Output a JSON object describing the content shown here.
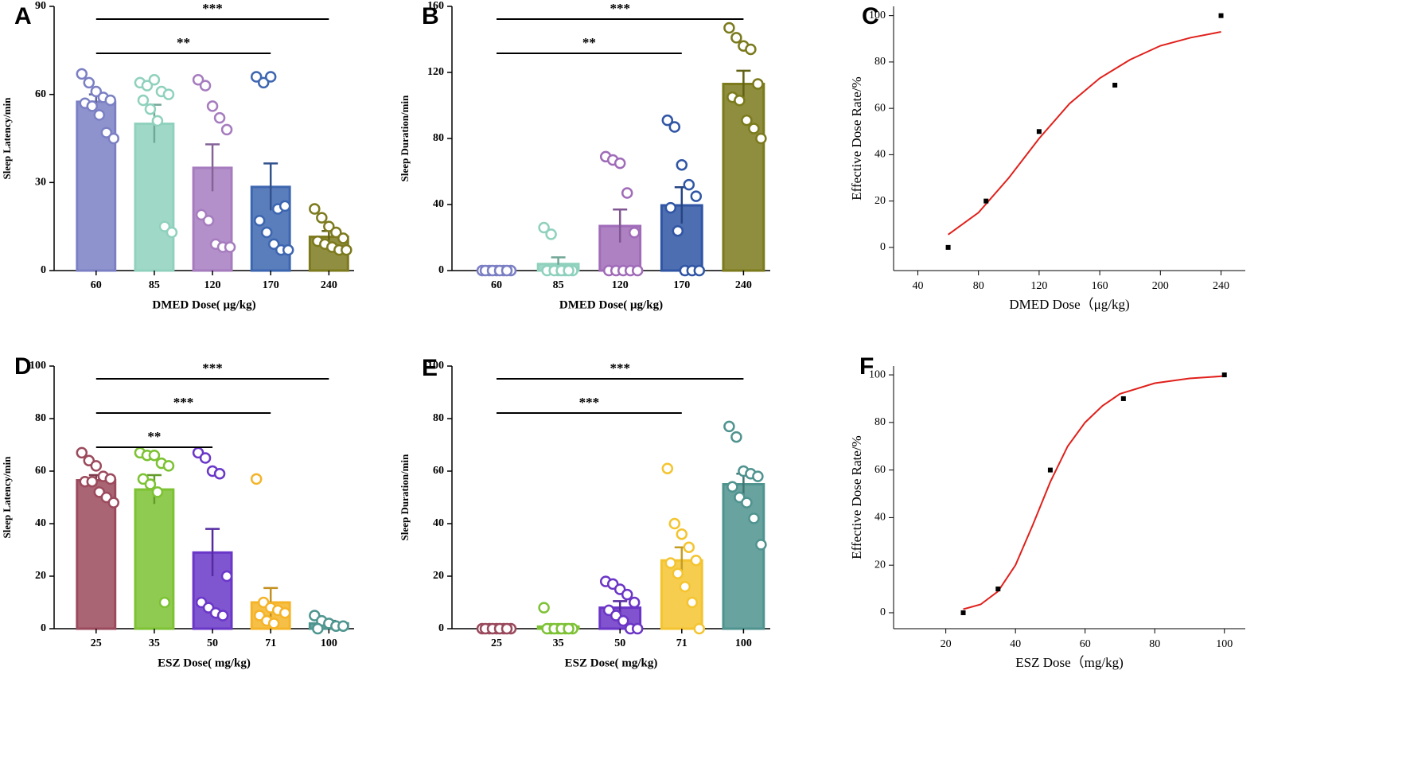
{
  "chart_data": [
    {
      "panel": "A",
      "type": "bar",
      "ylabel": "Sleep Latency/min",
      "xlabel": "DMED Dose( μg/kg)",
      "categories": [
        "60",
        "85",
        "120",
        "170",
        "240"
      ],
      "values": [
        57.5,
        50,
        35,
        28.5,
        11.5
      ],
      "errors": [
        2.5,
        6.5,
        8,
        8,
        2
      ],
      "colors": [
        "#7b80c4",
        "#8fd1bd",
        "#a67cbf",
        "#3d66b0",
        "#7d7a1e"
      ],
      "points": [
        [
          67,
          64,
          61,
          59,
          58,
          57,
          56,
          53,
          47,
          45
        ],
        [
          64,
          63,
          65,
          61,
          60,
          58,
          55,
          51,
          15,
          13
        ],
        [
          65,
          63,
          56,
          52,
          48,
          19,
          17,
          9,
          8,
          8
        ],
        [
          66,
          64,
          66,
          21,
          22,
          17,
          13,
          9,
          7,
          7
        ],
        [
          21,
          18,
          15,
          13,
          11,
          10,
          9,
          8,
          7,
          7
        ]
      ],
      "ylim": [
        0,
        90
      ],
      "yticks": [
        0,
        30,
        60,
        90
      ],
      "annotations": [
        {
          "label": "**",
          "between": [
            "60",
            "170"
          ]
        },
        {
          "label": "***",
          "between": [
            "60",
            "240"
          ]
        }
      ]
    },
    {
      "panel": "B",
      "type": "bar",
      "ylabel": "Sleep Duration/min",
      "xlabel": "DMED Dose( μg/kg)",
      "categories": [
        "60",
        "85",
        "120",
        "170",
        "240"
      ],
      "values": [
        0,
        4,
        27,
        39.5,
        113
      ],
      "errors": [
        0,
        4,
        10,
        11,
        8
      ],
      "colors": [
        "#7b7fc4",
        "#8fd1bd",
        "#a06bb8",
        "#2f55a4",
        "#7b7a1c"
      ],
      "points": [
        [
          0,
          0,
          0,
          0,
          0,
          0,
          0,
          0,
          0
        ],
        [
          26,
          22,
          0,
          0,
          0,
          0,
          0,
          0,
          0
        ],
        [
          69,
          67,
          65,
          47,
          23,
          0,
          0,
          0,
          0,
          0
        ],
        [
          91,
          87,
          64,
          52,
          45,
          38,
          24,
          0,
          0,
          0
        ],
        [
          147,
          141,
          136,
          134,
          113,
          105,
          103,
          91,
          86,
          80
        ]
      ],
      "ylim": [
        0,
        160
      ],
      "yticks": [
        0,
        40,
        80,
        120,
        160
      ],
      "annotations": [
        {
          "label": "**",
          "between": [
            "60",
            "170"
          ]
        },
        {
          "label": "***",
          "between": [
            "60",
            "240"
          ]
        }
      ]
    },
    {
      "panel": "C",
      "type": "scatter",
      "ylabel": "Effective Dose Rate/%",
      "xlabel": "DMED Dose（μg/kg)",
      "x": [
        60,
        85,
        120,
        170,
        240
      ],
      "values": [
        0,
        20,
        50,
        70,
        100
      ],
      "color": "#000000",
      "fit": {
        "x": [
          60,
          80,
          100,
          120,
          140,
          160,
          180,
          200,
          220,
          240
        ],
        "y": [
          5.5,
          15,
          30,
          47,
          62,
          73,
          81,
          87,
          90.5,
          93
        ],
        "color": "#e0201b"
      },
      "xlim": [
        24,
        256
      ],
      "xticks": [
        40,
        80,
        120,
        160,
        200,
        240
      ],
      "ylim": [
        -10,
        104
      ],
      "yticks": [
        0,
        20,
        40,
        60,
        80,
        100
      ]
    },
    {
      "panel": "D",
      "type": "bar",
      "ylabel": "Sleep Latency/min",
      "xlabel": "ESZ Dose( mg/kg)",
      "categories": [
        "25",
        "35",
        "50",
        "71",
        "100"
      ],
      "values": [
        56.5,
        53,
        29,
        10,
        2
      ],
      "errors": [
        2,
        5.5,
        9,
        5.5,
        1
      ],
      "colors": [
        "#9b4a5c",
        "#7cc233",
        "#6a37c8",
        "#f5b428",
        "#4f9590"
      ],
      "points": [
        [
          67,
          64,
          62,
          58,
          57,
          56,
          56,
          52,
          50,
          48
        ],
        [
          67,
          66,
          66,
          63,
          62,
          57,
          55,
          52,
          10
        ],
        [
          67,
          65,
          60,
          59,
          20,
          10,
          8,
          6,
          5
        ],
        [
          57,
          10,
          8,
          7,
          6,
          5,
          3,
          2
        ],
        [
          5,
          3,
          2,
          1,
          1,
          0
        ]
      ],
      "ylim": [
        0,
        100
      ],
      "yticks": [
        0,
        20,
        40,
        60,
        80,
        100
      ],
      "annotations": [
        {
          "label": "**",
          "between": [
            "25",
            "50"
          ]
        },
        {
          "label": "***",
          "between": [
            "25",
            "71"
          ]
        },
        {
          "label": "***",
          "between": [
            "25",
            "100"
          ]
        }
      ]
    },
    {
      "panel": "E",
      "type": "bar",
      "ylabel": "Sleep Duration/min",
      "xlabel": "ESZ Dose( mg/kg)",
      "categories": [
        "25",
        "35",
        "50",
        "71",
        "100"
      ],
      "values": [
        0,
        0.8,
        8,
        26,
        55
      ],
      "errors": [
        0,
        0.8,
        2.5,
        5,
        4
      ],
      "colors": [
        "#9a4a5d",
        "#7ec236",
        "#6b35c6",
        "#f4c430",
        "#4f938f"
      ],
      "points": [
        [
          0,
          0,
          0,
          0,
          0,
          0,
          0,
          0,
          0
        ],
        [
          8,
          0,
          0,
          0,
          0,
          0,
          0,
          0,
          0
        ],
        [
          18,
          17,
          15,
          13,
          10,
          7,
          5,
          3,
          0,
          0
        ],
        [
          61,
          40,
          36,
          31,
          26,
          25,
          21,
          16,
          10,
          0
        ],
        [
          77,
          73,
          60,
          59,
          58,
          54,
          50,
          48,
          42,
          32
        ]
      ],
      "ylim": [
        0,
        100
      ],
      "yticks": [
        0,
        20,
        40,
        60,
        80,
        100
      ],
      "annotations": [
        {
          "label": "***",
          "between": [
            "25",
            "71"
          ]
        },
        {
          "label": "***",
          "between": [
            "25",
            "100"
          ]
        }
      ]
    },
    {
      "panel": "F",
      "type": "scatter",
      "ylabel": "Effective Dose Rate/%",
      "xlabel": "ESZ Dose（mg/kg)",
      "x": [
        25,
        35,
        50,
        71,
        100
      ],
      "values": [
        0,
        10,
        60,
        90,
        100
      ],
      "color": "#000000",
      "fit": {
        "x": [
          25,
          30,
          35,
          40,
          45,
          50,
          55,
          60,
          65,
          70,
          80,
          90,
          100
        ],
        "y": [
          1.5,
          3.5,
          9,
          20,
          37,
          55,
          70,
          80,
          87,
          92,
          96.5,
          98.5,
          99.5
        ],
        "color": "#e0201b"
      },
      "xlim": [
        5,
        106
      ],
      "xticks": [
        20,
        40,
        60,
        80,
        100
      ],
      "ylim": [
        -6.7,
        103.7
      ],
      "yticks": [
        0,
        20,
        40,
        60,
        80,
        100
      ]
    }
  ]
}
